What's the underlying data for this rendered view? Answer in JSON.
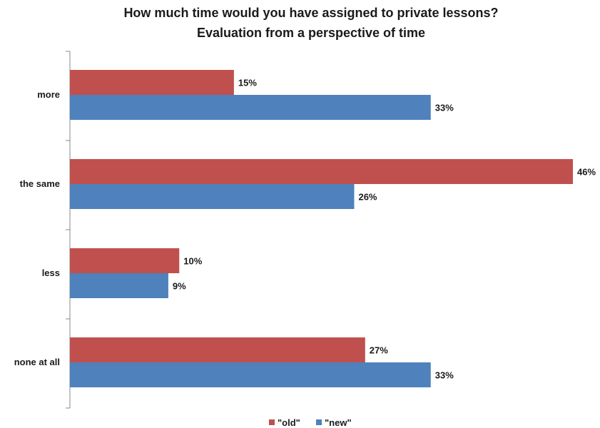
{
  "chart_data": {
    "type": "bar",
    "orientation": "horizontal",
    "title": "How much time would you have assigned to private lessons?",
    "subtitle": "Evaluation from a perspective of time",
    "categories": [
      "more",
      "the same",
      "less",
      "none at all"
    ],
    "series": [
      {
        "name": "\"old\"",
        "color": "#c0504d",
        "values": [
          15,
          46,
          10,
          27
        ],
        "labels": [
          "15%",
          "46%",
          "10%",
          "27%"
        ]
      },
      {
        "name": "\"new\"",
        "color": "#4f81bd",
        "values": [
          33,
          26,
          9,
          33
        ],
        "labels": [
          "33%",
          "26%",
          "9%",
          "33%"
        ]
      }
    ],
    "xlim": [
      0,
      46
    ],
    "grid": false,
    "legend": "bottom"
  }
}
